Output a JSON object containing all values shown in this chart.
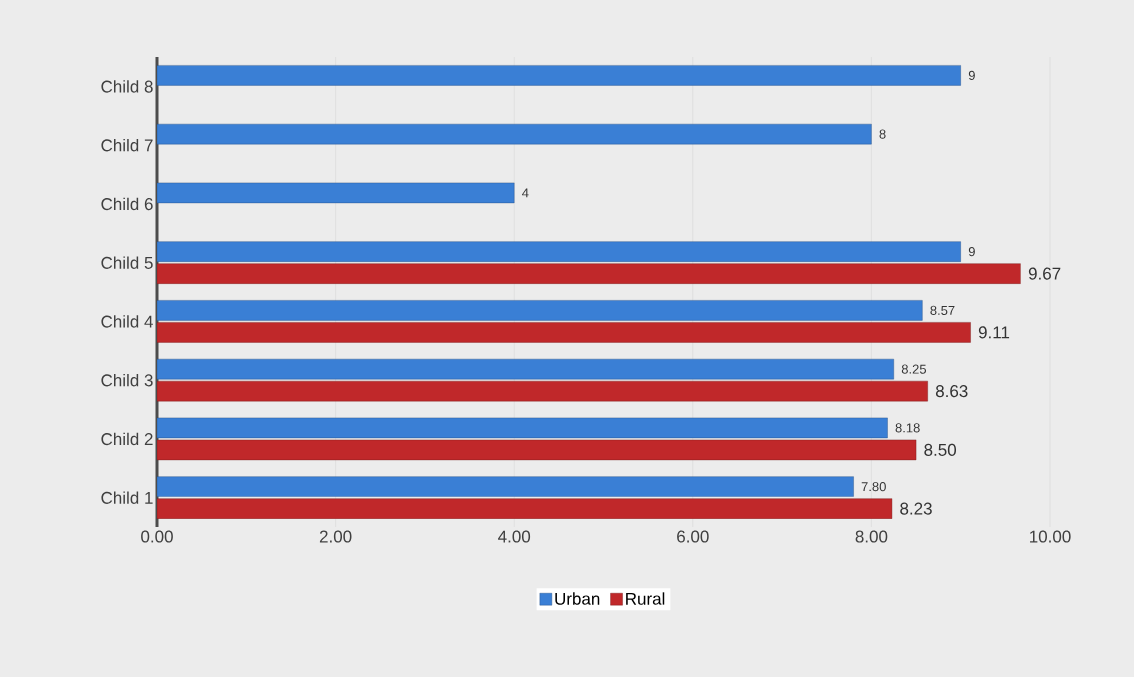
{
  "chart_data": {
    "type": "bar",
    "orientation": "horizontal",
    "categories": [
      "Child 8",
      "Child 7",
      "Child 6",
      "Child 5",
      "Child 4",
      "Child 3",
      "Child 2",
      "Child 1"
    ],
    "series": [
      {
        "name": "Urban",
        "color": "#3a7fd5",
        "values": [
          9,
          8,
          4,
          9,
          8.57,
          8.25,
          8.18,
          7.8
        ],
        "value_labels": [
          "9",
          "8",
          "4",
          "9",
          "8.57",
          "8.25",
          "8.18",
          "7.80"
        ]
      },
      {
        "name": "Rural",
        "color": "#c0282a",
        "values": [
          null,
          null,
          null,
          9.67,
          9.11,
          8.63,
          8.5,
          8.23
        ],
        "value_labels": [
          null,
          null,
          null,
          "9.67",
          "9.11",
          "8.63",
          "8.50",
          "8.23"
        ]
      }
    ],
    "xlim": [
      0,
      10
    ],
    "xticks": [
      {
        "value": 0,
        "label": "0.00"
      },
      {
        "value": 2,
        "label": "2.00"
      },
      {
        "value": 4,
        "label": "4.00"
      },
      {
        "value": 6,
        "label": "6.00"
      },
      {
        "value": 8,
        "label": "8.00"
      },
      {
        "value": 10,
        "label": "10.00"
      }
    ],
    "grid": "x",
    "legend": "bottom"
  }
}
